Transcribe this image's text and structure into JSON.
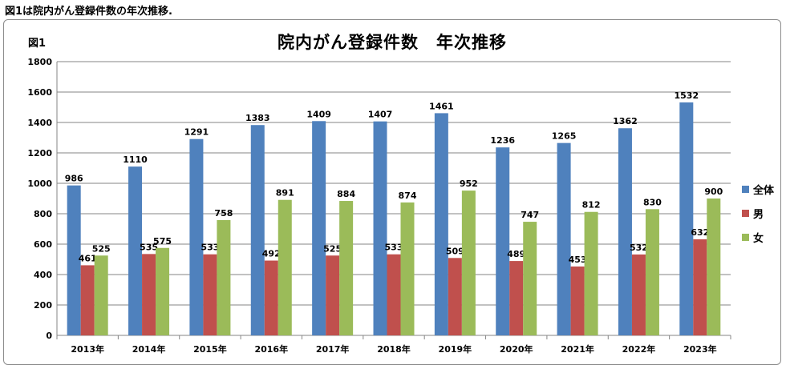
{
  "caption": "図1は院内がん登録件数の年次推移.",
  "figure_label": "図1",
  "chart_data": {
    "type": "bar",
    "title": "院内がん登録件数　年次推移",
    "categories": [
      "2013年",
      "2014年",
      "2015年",
      "2016年",
      "2017年",
      "2018年",
      "2019年",
      "2020年",
      "2021年",
      "2022年",
      "2023年"
    ],
    "series": [
      {
        "name": "全体",
        "color": "#4f81bd",
        "values": [
          986,
          1110,
          1291,
          1383,
          1409,
          1407,
          1461,
          1236,
          1265,
          1362,
          1532
        ]
      },
      {
        "name": "男",
        "color": "#c0504d",
        "values": [
          461,
          535,
          533,
          492,
          525,
          533,
          509,
          489,
          453,
          532,
          632
        ]
      },
      {
        "name": "女",
        "color": "#9bbb59",
        "values": [
          525,
          575,
          758,
          891,
          884,
          874,
          952,
          747,
          812,
          830,
          900
        ]
      }
    ],
    "ylim": [
      0,
      1800
    ],
    "yticks": [
      0,
      200,
      400,
      600,
      800,
      1000,
      1200,
      1400,
      1600,
      1800
    ],
    "grid": true,
    "legend_position": "right"
  }
}
